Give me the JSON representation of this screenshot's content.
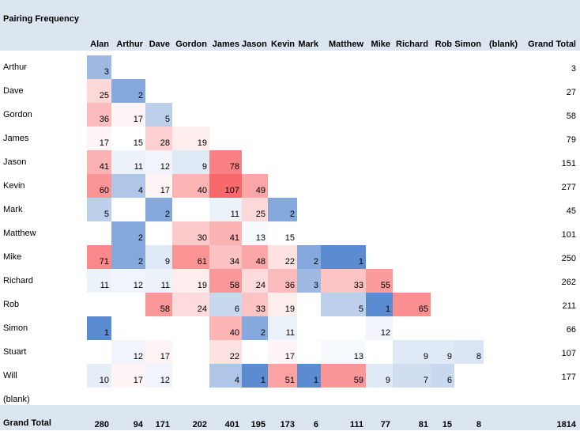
{
  "chart_data": {
    "type": "heatmap",
    "title": "Pairing Frequency",
    "columns": [
      "Alan",
      "Arthur",
      "Dave",
      "Gordon",
      "James",
      "Jason",
      "Kevin",
      "Mark",
      "Matthew",
      "Mike",
      "Richard",
      "Rob",
      "Simon",
      "(blank)"
    ],
    "grand_total_label": "Grand Total",
    "rows": [
      {
        "label": "Arthur",
        "values": [
          3,
          null,
          null,
          null,
          null,
          null,
          null,
          null,
          null,
          null,
          null,
          null,
          null,
          null
        ],
        "total": 3
      },
      {
        "label": "Dave",
        "values": [
          25,
          2,
          null,
          null,
          null,
          null,
          null,
          null,
          null,
          null,
          null,
          null,
          null,
          null
        ],
        "total": 27
      },
      {
        "label": "Gordon",
        "values": [
          36,
          17,
          5,
          null,
          null,
          null,
          null,
          null,
          null,
          null,
          null,
          null,
          null,
          null
        ],
        "total": 58
      },
      {
        "label": "James",
        "values": [
          17,
          15,
          28,
          19,
          null,
          null,
          null,
          null,
          null,
          null,
          null,
          null,
          null,
          null
        ],
        "total": 79
      },
      {
        "label": "Jason",
        "values": [
          41,
          11,
          12,
          9,
          78,
          null,
          null,
          null,
          null,
          null,
          null,
          null,
          null,
          null
        ],
        "total": 151
      },
      {
        "label": "Kevin",
        "values": [
          60,
          4,
          17,
          40,
          107,
          49,
          null,
          null,
          null,
          null,
          null,
          null,
          null,
          null
        ],
        "total": 277
      },
      {
        "label": "Mark",
        "values": [
          5,
          null,
          2,
          null,
          11,
          25,
          2,
          null,
          null,
          null,
          null,
          null,
          null,
          null
        ],
        "total": 45
      },
      {
        "label": "Matthew",
        "values": [
          null,
          2,
          null,
          30,
          41,
          13,
          15,
          null,
          null,
          null,
          null,
          null,
          null,
          null
        ],
        "total": 101
      },
      {
        "label": "Mike",
        "values": [
          71,
          2,
          9,
          61,
          34,
          48,
          22,
          2,
          1,
          null,
          null,
          null,
          null,
          null
        ],
        "total": 250
      },
      {
        "label": "Richard",
        "values": [
          11,
          12,
          11,
          19,
          58,
          24,
          36,
          3,
          33,
          55,
          null,
          null,
          null,
          null
        ],
        "total": 262
      },
      {
        "label": "Rob",
        "values": [
          null,
          null,
          58,
          24,
          6,
          33,
          19,
          null,
          5,
          1,
          65,
          null,
          null,
          null
        ],
        "total": 211
      },
      {
        "label": "Simon",
        "values": [
          1,
          null,
          null,
          null,
          40,
          2,
          11,
          null,
          null,
          12,
          null,
          null,
          null,
          null
        ],
        "total": 66
      },
      {
        "label": "Stuart",
        "values": [
          null,
          12,
          17,
          null,
          22,
          null,
          17,
          null,
          13,
          null,
          9,
          9,
          8,
          null
        ],
        "total": 107
      },
      {
        "label": "Will",
        "values": [
          10,
          17,
          12,
          null,
          4,
          1,
          51,
          1,
          59,
          9,
          7,
          6,
          null,
          null
        ],
        "total": 177
      },
      {
        "label": "(blank)",
        "values": [
          null,
          null,
          null,
          null,
          null,
          null,
          null,
          null,
          null,
          null,
          null,
          null,
          null,
          null
        ],
        "total": null
      }
    ],
    "grand_total_row": {
      "label": "Grand Total",
      "values": [
        280,
        94,
        171,
        202,
        401,
        195,
        173,
        6,
        111,
        77,
        81,
        15,
        8,
        null
      ],
      "total": 1814
    },
    "color_scale": {
      "low": "#5b8bd0",
      "mid": "#ffffff",
      "high": "#f8696b"
    }
  }
}
